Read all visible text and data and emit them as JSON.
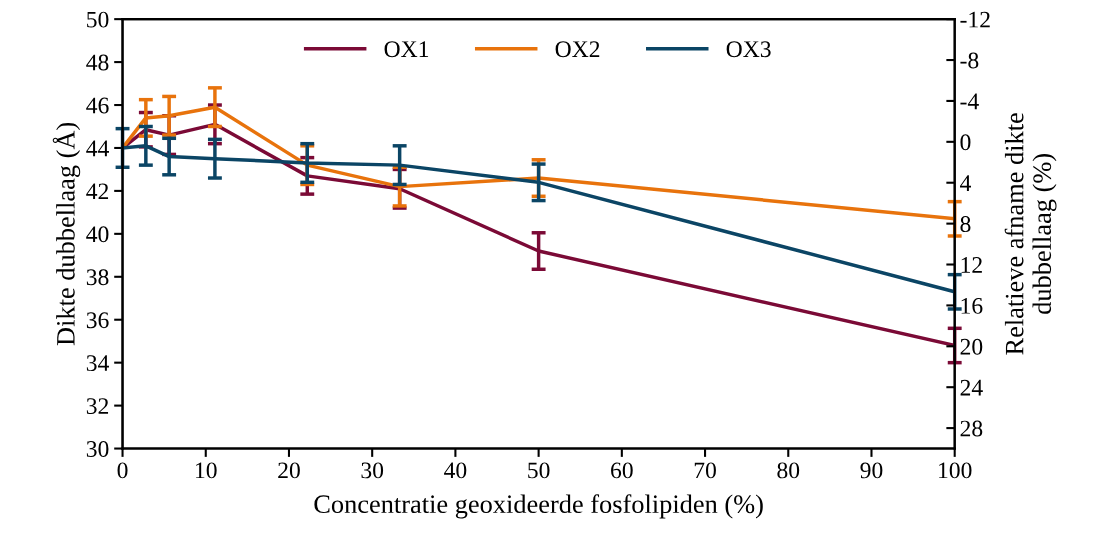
{
  "chart_data": {
    "type": "line",
    "xlabel": "Concentratie geoxideerde fosfolipiden (%)",
    "ylabel": "Dikte dubbellaag (Å)",
    "y2label": "Relatieve afname dikte\ndubbellaag (%)",
    "x": [
      0,
      2.8,
      5.6,
      11.1,
      22.2,
      33.3,
      50,
      100
    ],
    "series": [
      {
        "name": "OX1",
        "color": "#7b0a36",
        "values": [
          44.0,
          44.85,
          44.6,
          45.1,
          42.7,
          42.1,
          39.2,
          34.8
        ],
        "errors": [
          null,
          0.8,
          0.9,
          0.9,
          0.85,
          0.9,
          0.85,
          0.8
        ]
      },
      {
        "name": "OX2",
        "color": "#e8730c",
        "values": [
          44.0,
          45.4,
          45.5,
          45.9,
          43.2,
          42.2,
          42.6,
          40.7
        ],
        "errors": [
          null,
          0.85,
          0.9,
          0.9,
          0.9,
          0.9,
          0.85,
          0.8
        ]
      },
      {
        "name": "OX3",
        "color": "#0b4565",
        "values": [
          44.0,
          44.1,
          43.6,
          43.5,
          43.3,
          43.2,
          42.4,
          37.3
        ],
        "errors": [
          0.9,
          0.9,
          0.85,
          0.9,
          0.9,
          0.9,
          0.85,
          0.8
        ]
      }
    ],
    "xlim": [
      0,
      100
    ],
    "xticks": [
      0,
      10,
      20,
      30,
      40,
      50,
      60,
      70,
      80,
      90,
      100
    ],
    "ylim": [
      30,
      50
    ],
    "yticks": [
      30,
      32,
      34,
      36,
      38,
      40,
      42,
      44,
      46,
      48,
      50
    ],
    "y2lim": [
      30,
      -12
    ],
    "y2ticks": [
      -12,
      -8,
      -4,
      0,
      4,
      8,
      12,
      16,
      20,
      24,
      28
    ],
    "legend": "top",
    "grid": false,
    "marker": "none",
    "line_style": "solid"
  }
}
